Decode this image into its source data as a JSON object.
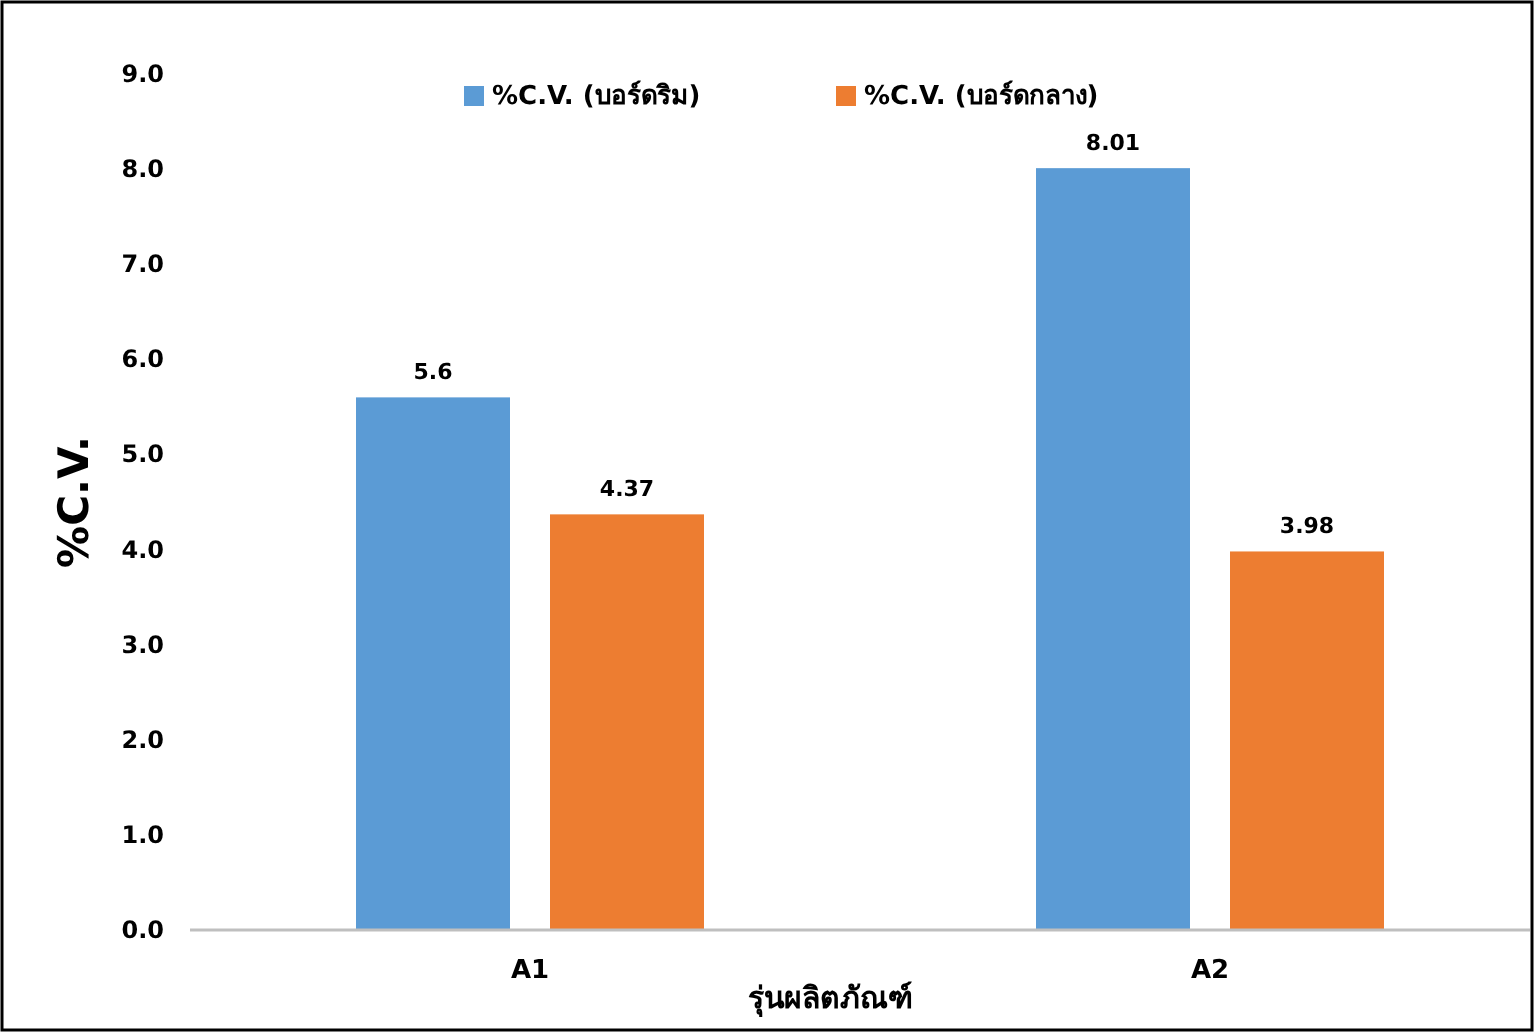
{
  "chart_data": {
    "type": "bar",
    "xlabel": "รุ่นผลิตภัณฑ์",
    "ylabel": "%C.V.",
    "categories": [
      "A1",
      "A2"
    ],
    "series": [
      {
        "name": "%C.V. (บอร์ดริม)",
        "color": "#5b9bd5",
        "values": [
          5.6,
          8.01
        ]
      },
      {
        "name": "%C.V. (บอร์ดกลาง)",
        "color": "#ed7d31",
        "values": [
          4.37,
          3.98
        ]
      }
    ],
    "ylim": [
      0,
      9
    ],
    "yticks": [
      {
        "value": 0,
        "label": "0.0"
      },
      {
        "value": 1,
        "label": "1.0"
      },
      {
        "value": 2,
        "label": "2.0"
      },
      {
        "value": 3,
        "label": "3.0"
      },
      {
        "value": 4,
        "label": "4.0"
      },
      {
        "value": 5,
        "label": "5.0"
      },
      {
        "value": 6,
        "label": "6.0"
      },
      {
        "value": 7,
        "label": "7.0"
      },
      {
        "value": 8,
        "label": "8.0"
      },
      {
        "value": 9,
        "label": "9.0"
      }
    ],
    "data_labels": true,
    "legend": "top",
    "grid": false
  }
}
